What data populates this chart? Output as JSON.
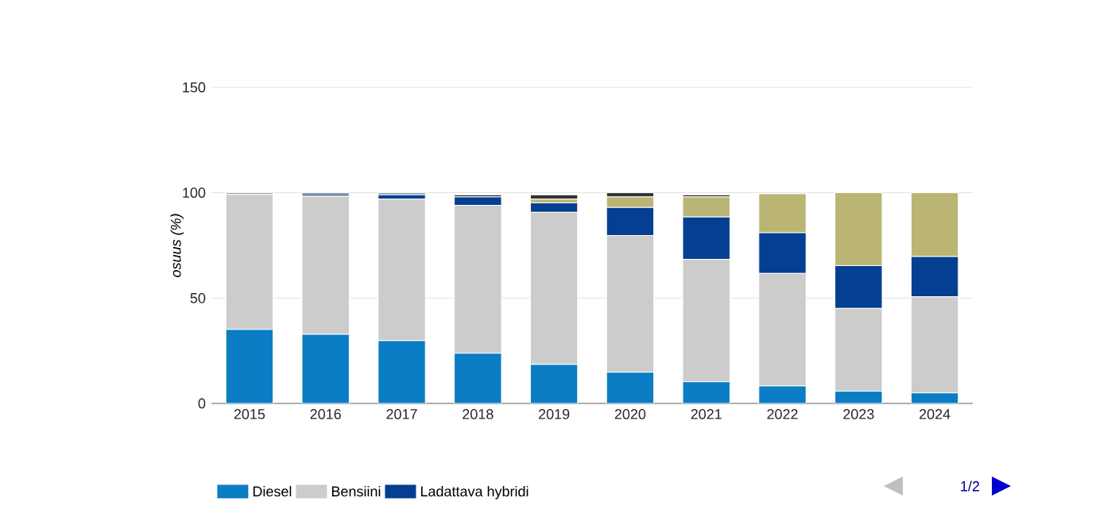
{
  "chart_data": {
    "type": "bar",
    "stacked": true,
    "ylabel": "osuus (%)",
    "categories": [
      "2015",
      "2016",
      "2017",
      "2018",
      "2019",
      "2020",
      "2021",
      "2022",
      "2023",
      "2024"
    ],
    "series": [
      {
        "name": "Diesel",
        "color": "#0a7dc4",
        "values": [
          35.1,
          32.8,
          29.8,
          23.8,
          18.5,
          14.8,
          10.3,
          8.3,
          5.8,
          5.0
        ]
      },
      {
        "name": "Bensiini",
        "color": "#cccccc",
        "values": [
          64.1,
          65.4,
          67.2,
          70.2,
          72.2,
          64.9,
          58.1,
          53.4,
          39.3,
          45.6
        ]
      },
      {
        "name": "Ladattava hybridi",
        "color": "#053f91",
        "values": [
          0,
          0,
          2.0,
          4.0,
          4.5,
          13.3,
          20.1,
          19.3,
          20.3,
          19.1
        ]
      },
      {
        "color": "#bab575",
        "values": [
          0,
          0,
          0,
          0,
          1.8,
          5.0,
          9.5,
          18.5,
          34.6,
          30.3
        ]
      },
      {
        "color": "#333333",
        "values": [
          0,
          0,
          0,
          1.0,
          2.0,
          2.0,
          1.0,
          0,
          0,
          0
        ]
      },
      {
        "color": "#7f93ad",
        "values": [
          0.8,
          1.8,
          1.0,
          0,
          0,
          0,
          0,
          0,
          0,
          0
        ]
      }
    ],
    "ylim": [
      0,
      150
    ],
    "yticks": [
      0,
      50,
      100,
      150
    ],
    "grid": "y",
    "legend": "bottom",
    "annotations": [
      "1/2"
    ]
  }
}
